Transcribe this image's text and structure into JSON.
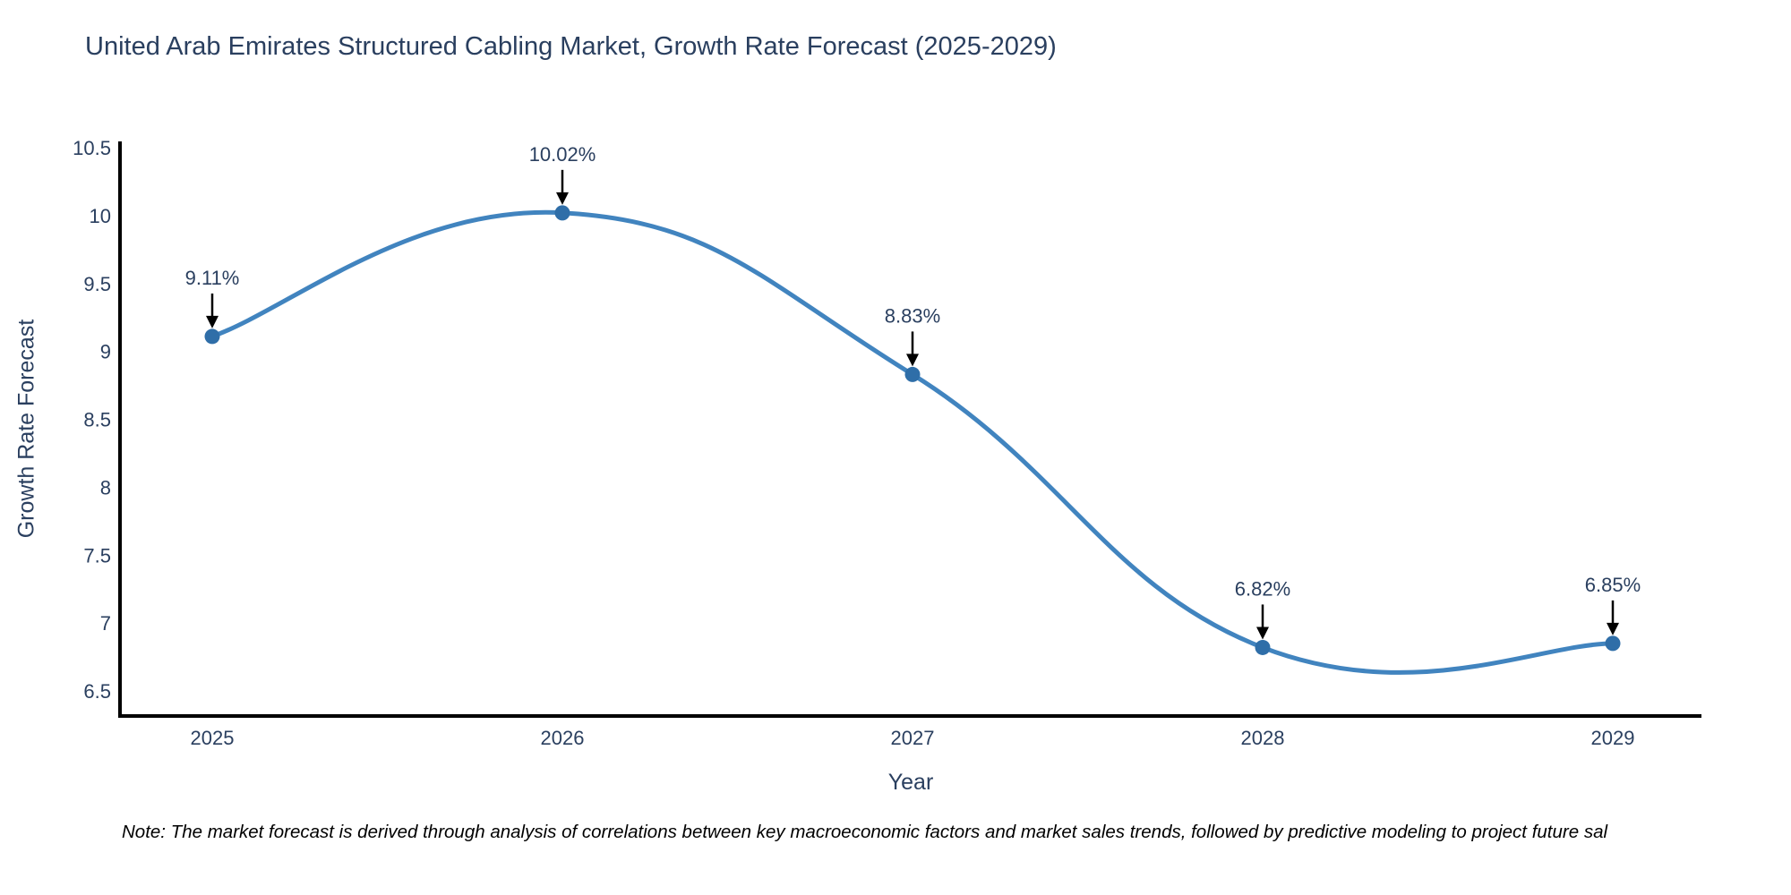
{
  "title": "United Arab Emirates Structured Cabling Market, Growth Rate Forecast (2025-2029)",
  "note": "Note: The market forecast is derived through analysis of correlations between key macroeconomic factors and market sales trends, followed by predictive modeling to project future sal",
  "chart_data": {
    "type": "line",
    "line_shape": "spline",
    "categories": [
      "2025",
      "2026",
      "2027",
      "2028",
      "2029"
    ],
    "values": [
      9.11,
      10.02,
      8.83,
      6.82,
      6.85
    ],
    "point_labels": [
      "9.11%",
      "10.02%",
      "8.83%",
      "6.82%",
      "6.85%"
    ],
    "title": "United Arab Emirates Structured Cabling Market, Growth Rate Forecast (2025-2029)",
    "xlabel": "Year",
    "ylabel": "Growth Rate Forecast",
    "ylim": [
      6.3,
      10.55
    ],
    "yticks": [
      6.5,
      7,
      7.5,
      8,
      8.5,
      9,
      9.5,
      10,
      10.5
    ],
    "ytick_labels": [
      "6.5",
      "7",
      "7.5",
      "8",
      "8.5",
      "9",
      "9.5",
      "10",
      "10.5"
    ],
    "grid": false,
    "legend": "none",
    "annotations_arrow": true,
    "colors": {
      "line": "#4184bf",
      "marker": "#2f6ea8",
      "arrow": "#000000",
      "axis": "#000000",
      "text": "#2a3f5f",
      "background": "#ffffff"
    }
  }
}
